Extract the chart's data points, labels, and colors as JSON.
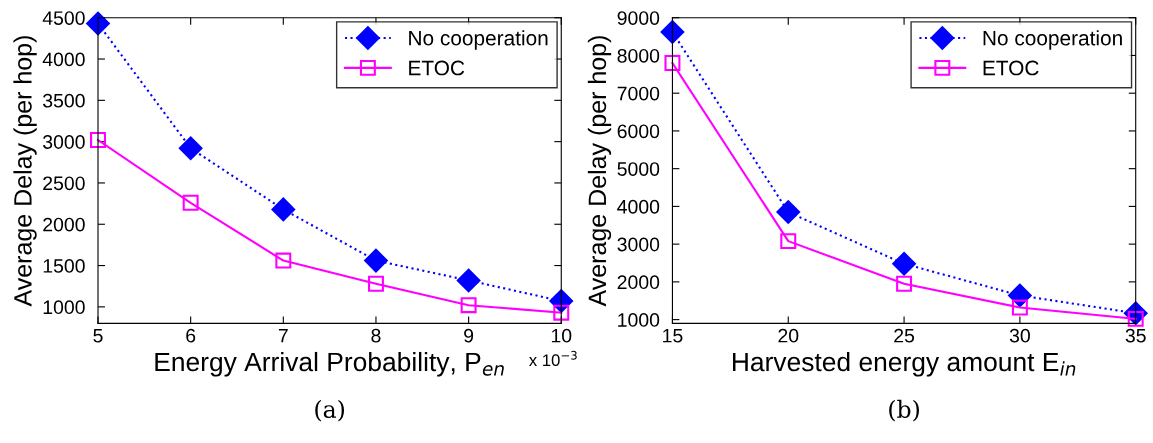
{
  "chart_data": [
    {
      "type": "line",
      "xlabel": "Energy Arrival Probability, P$_{en}$",
      "ylabel": "Average Delay (per hop)",
      "x": [
        5,
        6,
        7,
        8,
        9,
        10
      ],
      "xlim": [
        5,
        10
      ],
      "xticks": [
        5,
        6,
        7,
        8,
        9,
        10
      ],
      "ylim": [
        800,
        4500
      ],
      "yticks": [
        1000,
        1500,
        2000,
        2500,
        3000,
        3500,
        4000,
        4500
      ],
      "legend": "top right",
      "grid": false,
      "annotations": [
        "x 10$^{−3}$",
        "(a)"
      ],
      "series": [
        {
          "name": "No cooperation",
          "color": "#0000ff",
          "marker": "diamond",
          "line_style": "dotted",
          "values": [
            4430,
            2920,
            2180,
            1560,
            1320,
            1070
          ]
        },
        {
          "name": "ETOC",
          "color": "#ff00ff",
          "marker": "square",
          "line_style": "solid",
          "values": [
            3020,
            2260,
            1560,
            1280,
            1020,
            930
          ]
        }
      ]
    },
    {
      "type": "line",
      "xlabel": "Harvested energy amount E$_{in}$",
      "ylabel": "Average Delay (per hop)",
      "x": [
        15,
        20,
        25,
        30,
        35
      ],
      "xlim": [
        15,
        35
      ],
      "xticks": [
        15,
        20,
        25,
        30,
        35
      ],
      "ylim": [
        900,
        9000
      ],
      "yticks": [
        1000,
        2000,
        3000,
        4000,
        5000,
        6000,
        7000,
        8000,
        9000
      ],
      "legend": "top right",
      "grid": false,
      "annotations": [
        "(b)"
      ],
      "series": [
        {
          "name": "No cooperation",
          "color": "#0000ff",
          "marker": "diamond",
          "line_style": "dotted",
          "values": [
            8620,
            3850,
            2480,
            1640,
            1170
          ]
        },
        {
          "name": "ETOC",
          "color": "#ff00ff",
          "marker": "square",
          "line_style": "solid",
          "values": [
            7800,
            3080,
            1950,
            1320,
            1020
          ]
        }
      ]
    }
  ]
}
